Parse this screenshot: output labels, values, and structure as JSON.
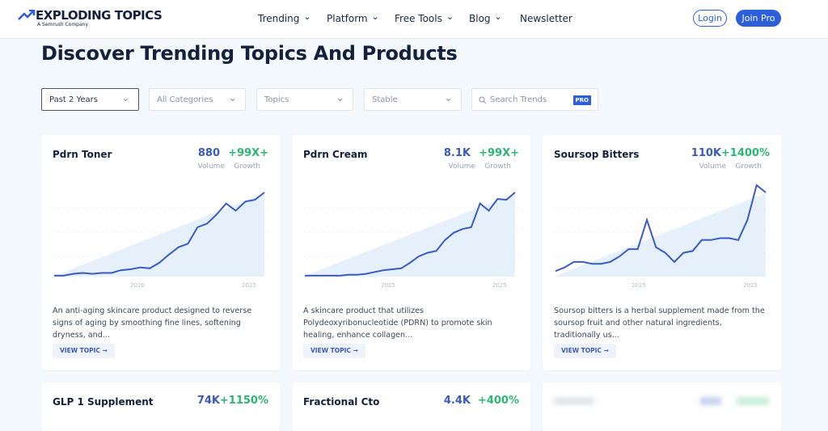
{
  "header": {
    "logo": "EXPLODING TOPICS",
    "logo_sub": "A Semrush Company",
    "nav": [
      "Trending",
      "Platform",
      "Free Tools",
      "Blog",
      "Newsletter"
    ],
    "login": "Login",
    "join": "Join Pro"
  },
  "page": {
    "title": "Discover Trending Topics And Products"
  },
  "filters": {
    "period": "Past 2 Years",
    "categories": "All Categories",
    "topics": "Topics",
    "status": "Stable",
    "search": "Search Trends",
    "search_badge": "PRO"
  },
  "cards": [
    {
      "name": "Pdrn Toner",
      "volume": "880",
      "volume_label": "Volume",
      "growth": "+99X+",
      "growth_label": "Growth",
      "years": [
        "2020",
        "2025"
      ],
      "description": "An anti-aging skincare product designed to reverse signs of aging by smoothing fine lines, softening dryness, and...",
      "button": "VIEW TOPIC",
      "trend": [
        1,
        1,
        3,
        4,
        3,
        4,
        4,
        7,
        8,
        10,
        9,
        15,
        24,
        32,
        36,
        54,
        58,
        68,
        80,
        72,
        82,
        84,
        92
      ]
    },
    {
      "name": "Pdrn Cream",
      "volume": "8.1K",
      "volume_label": "Volume",
      "growth": "+99X+",
      "growth_label": "Growth",
      "years": [
        "2025",
        "2025"
      ],
      "description": "A skincare product that utilizes Polydeoxyribonucleotide (PDRN) to promote skin healing, enhance collagen...",
      "button": "VIEW TOPIC",
      "trend": [
        1,
        1,
        1,
        1,
        1,
        2,
        2,
        3,
        5,
        7,
        8,
        9,
        15,
        22,
        26,
        28,
        40,
        48,
        52,
        54,
        80,
        72,
        85,
        84,
        92
      ]
    },
    {
      "name": "Soursop Bitters",
      "volume": "110K",
      "volume_label": "Volume",
      "growth": "+1400%",
      "growth_label": "Growth",
      "years": [
        "2025",
        "2025"
      ],
      "description": "Soursop bitters is a herbal supplement made from the soursop fruit and other natural ingredients, traditionally us...",
      "button": "VIEW TOPIC",
      "trend": [
        6,
        10,
        16,
        16,
        14,
        14,
        16,
        22,
        30,
        30,
        62,
        32,
        26,
        16,
        26,
        28,
        40,
        40,
        42,
        42,
        40,
        62,
        100,
        92
      ]
    }
  ],
  "more_cards": [
    {
      "name": "GLP 1 Supplement",
      "volume": "74K",
      "growth": "+1150%"
    },
    {
      "name": "Fractional Cto",
      "volume": "4.4K",
      "growth": "+400%"
    }
  ]
}
